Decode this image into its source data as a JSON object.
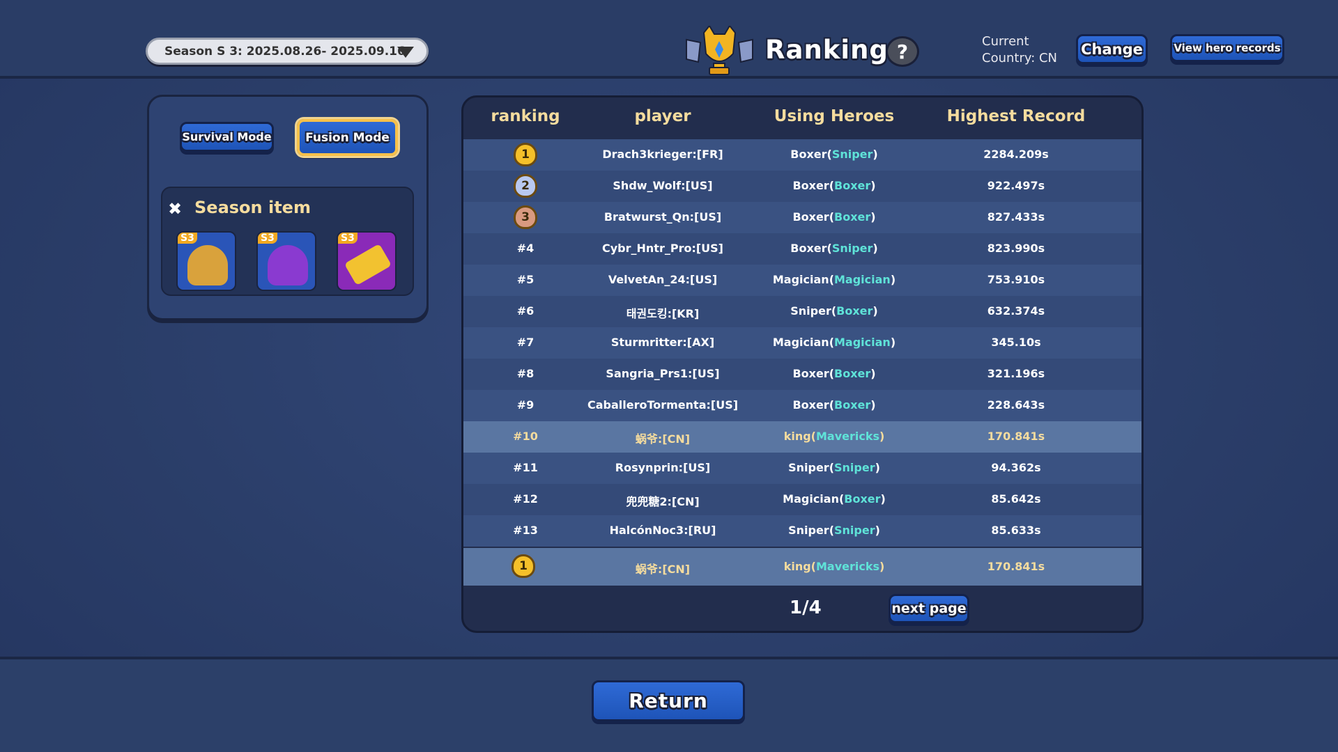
{
  "header": {
    "season_selector": "Season S 3: 2025.08.26- 2025.09.16",
    "title": "Ranking",
    "help": "?",
    "country_line1": "Current",
    "country_line2": "Country: CN",
    "change_label": "Change",
    "hero_records_label": "View hero records"
  },
  "modes": {
    "survival": "Survival Mode",
    "fusion": "Fusion Mode",
    "active": "Fusion Mode"
  },
  "season_items": {
    "title": "Season item",
    "items": [
      {
        "tag": "S3",
        "icon": "golden-toad-icon"
      },
      {
        "tag": "S3",
        "icon": "purple-bag-icon"
      },
      {
        "tag": "S3",
        "icon": "gold-bar-icon"
      }
    ]
  },
  "table": {
    "columns": [
      "ranking",
      "player",
      "Using Heroes",
      "Highest Record"
    ],
    "rows": [
      {
        "rank": "1",
        "medal": "gold",
        "player": "Drach3krieger:[FR]",
        "hero": "Boxer",
        "sub": "Sniper",
        "record": "2284.209s"
      },
      {
        "rank": "2",
        "medal": "silver",
        "player": "Shdw_Wolf:[US]",
        "hero": "Boxer",
        "sub": "Boxer",
        "record": "922.497s"
      },
      {
        "rank": "3",
        "medal": "bronze",
        "player": "Bratwurst_Qn:[US]",
        "hero": "Boxer",
        "sub": "Boxer",
        "record": "827.433s"
      },
      {
        "rank": "#4",
        "player": "Cybr_Hntr_Pro:[US]",
        "hero": "Boxer",
        "sub": "Sniper",
        "record": "823.990s"
      },
      {
        "rank": "#5",
        "player": "VelvetAn_24:[US]",
        "hero": "Magician",
        "sub": "Magician",
        "record": "753.910s"
      },
      {
        "rank": "#6",
        "player": "태권도킹:[KR]",
        "hero": "Sniper",
        "sub": "Boxer",
        "record": "632.374s"
      },
      {
        "rank": "#7",
        "player": "Sturmritter:[AX]",
        "hero": "Magician",
        "sub": "Magician",
        "record": "345.10s"
      },
      {
        "rank": "#8",
        "player": "Sangria_Prs1:[US]",
        "hero": "Boxer",
        "sub": "Boxer",
        "record": "321.196s"
      },
      {
        "rank": "#9",
        "player": "CaballeroTormenta:[US]",
        "hero": "Boxer",
        "sub": "Boxer",
        "record": "228.643s"
      },
      {
        "rank": "#10",
        "player": "蜗爷:[CN]",
        "hero": "king",
        "sub": "Mavericks",
        "record": "170.841s",
        "highlight": true
      },
      {
        "rank": "#11",
        "player": "Rosynprin:[US]",
        "hero": "Sniper",
        "sub": "Sniper",
        "record": "94.362s"
      },
      {
        "rank": "#12",
        "player": "兜兜糖2:[CN]",
        "hero": "Magician",
        "sub": "Boxer",
        "record": "85.642s"
      },
      {
        "rank": "#13",
        "player": "HalcónNoc3:[RU]",
        "hero": "Sniper",
        "sub": "Sniper",
        "record": "85.633s"
      }
    ],
    "self": {
      "rank": "1",
      "medal": "gold",
      "player": "蜗爷:[CN]",
      "hero": "king",
      "sub": "Mavericks",
      "record": "170.841s"
    }
  },
  "pagination": {
    "page": "1/4",
    "next_label": "next page"
  },
  "return_label": "Return",
  "colors": {
    "gold_text": "#f5dc9e",
    "cyan": "#5fe3d8",
    "button_blue": "#2f6ad6",
    "highlight_row": "#5a76a2"
  }
}
